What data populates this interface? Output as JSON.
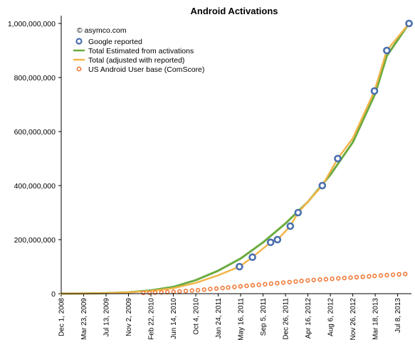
{
  "chart_data": {
    "type": "line",
    "title": "Android Activations",
    "copyright": "© asymco.com",
    "y_ticks": [
      "0",
      "200,000,000",
      "400,000,000",
      "600,000,000",
      "800,000,000",
      "1,000,000,000"
    ],
    "ylim": [
      0,
      1000000000
    ],
    "grid": false,
    "legend_position": "top-left",
    "x_ticks": [
      {
        "label": "Dec 1, 2008",
        "date": "2008-12-01"
      },
      {
        "label": "Mar 23, 2009",
        "date": "2009-03-23"
      },
      {
        "label": "Jul 13, 2009",
        "date": "2009-07-13"
      },
      {
        "label": "Nov 2, 2009",
        "date": "2009-11-02"
      },
      {
        "label": "Feb 22, 2010",
        "date": "2010-02-22"
      },
      {
        "label": "Jun 14, 2010",
        "date": "2010-06-14"
      },
      {
        "label": "Oct 4, 2010",
        "date": "2010-10-04"
      },
      {
        "label": "Jan 24, 2011",
        "date": "2011-01-24"
      },
      {
        "label": "May 16, 2011",
        "date": "2011-05-16"
      },
      {
        "label": "Sep 5, 2011",
        "date": "2011-09-05"
      },
      {
        "label": "Dec 26, 2011",
        "date": "2011-12-26"
      },
      {
        "label": "Apr 16, 2012",
        "date": "2012-04-16"
      },
      {
        "label": "Aug 6, 2012",
        "date": "2012-08-06"
      },
      {
        "label": "Nov 26, 2012",
        "date": "2012-11-26"
      },
      {
        "label": "Mar 18, 2013",
        "date": "2013-03-18"
      },
      {
        "label": "Jul 8, 2013",
        "date": "2013-07-08"
      }
    ],
    "xlim": [
      "2008-12-01",
      "2013-09-15"
    ],
    "series": [
      {
        "name": "Google reported",
        "style": "markers",
        "marker": "circle",
        "color": "#4a6fae",
        "points": [
          [
            "2011-05-10",
            100000000
          ],
          [
            "2011-07-14",
            135000000
          ],
          [
            "2011-10-13",
            190000000
          ],
          [
            "2011-11-16",
            200000000
          ],
          [
            "2012-01-19",
            250000000
          ],
          [
            "2012-02-27",
            300000000
          ],
          [
            "2012-06-27",
            400000000
          ],
          [
            "2012-09-12",
            500000000
          ],
          [
            "2013-03-14",
            750000000
          ],
          [
            "2013-05-15",
            900000000
          ],
          [
            "2013-09-03",
            1000000000
          ]
        ]
      },
      {
        "name": "Total Estimated from activations",
        "style": "line",
        "color": "#6aab3f",
        "points": [
          [
            "2008-12-01",
            0
          ],
          [
            "2009-03-23",
            500000
          ],
          [
            "2009-07-13",
            2000000
          ],
          [
            "2009-11-02",
            5000000
          ],
          [
            "2010-02-22",
            12000000
          ],
          [
            "2010-06-14",
            25000000
          ],
          [
            "2010-10-04",
            50000000
          ],
          [
            "2011-01-24",
            85000000
          ],
          [
            "2011-05-16",
            130000000
          ],
          [
            "2011-09-05",
            190000000
          ],
          [
            "2011-12-26",
            260000000
          ],
          [
            "2012-04-16",
            340000000
          ],
          [
            "2012-08-06",
            440000000
          ],
          [
            "2012-11-26",
            560000000
          ],
          [
            "2013-03-18",
            740000000
          ],
          [
            "2013-05-15",
            880000000
          ],
          [
            "2013-09-03",
            1000000000
          ]
        ]
      },
      {
        "name": "Total (adjusted with reported)",
        "style": "line",
        "color": "#f2b54a",
        "points": [
          [
            "2008-12-01",
            0
          ],
          [
            "2009-03-23",
            500000
          ],
          [
            "2009-07-13",
            2000000
          ],
          [
            "2009-11-02",
            5000000
          ],
          [
            "2010-02-22",
            10000000
          ],
          [
            "2010-06-14",
            20000000
          ],
          [
            "2010-10-04",
            40000000
          ],
          [
            "2011-01-24",
            68000000
          ],
          [
            "2011-05-10",
            100000000
          ],
          [
            "2011-07-14",
            135000000
          ],
          [
            "2011-10-13",
            190000000
          ],
          [
            "2011-11-16",
            200000000
          ],
          [
            "2012-01-19",
            250000000
          ],
          [
            "2012-02-27",
            300000000
          ],
          [
            "2012-06-27",
            400000000
          ],
          [
            "2012-09-12",
            500000000
          ],
          [
            "2012-11-26",
            575000000
          ],
          [
            "2013-03-14",
            750000000
          ],
          [
            "2013-05-15",
            900000000
          ],
          [
            "2013-09-03",
            1000000000
          ]
        ]
      },
      {
        "name": "US Android User base (ComScore)",
        "style": "markers",
        "marker": "circle",
        "color": "#f07b3a",
        "points": [
          [
            "2010-01-15",
            3000000
          ],
          [
            "2010-02-15",
            3500000
          ],
          [
            "2010-03-15",
            4000000
          ],
          [
            "2010-04-15",
            5000000
          ],
          [
            "2010-05-15",
            6000000
          ],
          [
            "2010-06-15",
            7000000
          ],
          [
            "2010-07-15",
            8500000
          ],
          [
            "2010-08-15",
            10000000
          ],
          [
            "2010-09-15",
            11500000
          ],
          [
            "2010-10-15",
            13000000
          ],
          [
            "2010-11-15",
            15000000
          ],
          [
            "2010-12-15",
            17000000
          ],
          [
            "2011-01-15",
            19000000
          ],
          [
            "2011-02-15",
            21000000
          ],
          [
            "2011-03-15",
            23000000
          ],
          [
            "2011-04-15",
            25000000
          ],
          [
            "2011-05-15",
            27000000
          ],
          [
            "2011-06-15",
            29000000
          ],
          [
            "2011-07-15",
            31000000
          ],
          [
            "2011-08-15",
            33000000
          ],
          [
            "2011-09-15",
            35000000
          ],
          [
            "2011-10-15",
            37000000
          ],
          [
            "2011-11-15",
            39000000
          ],
          [
            "2011-12-15",
            41000000
          ],
          [
            "2012-01-15",
            43000000
          ],
          [
            "2012-02-15",
            45000000
          ],
          [
            "2012-03-15",
            47000000
          ],
          [
            "2012-04-15",
            49000000
          ],
          [
            "2012-05-15",
            50500000
          ],
          [
            "2012-06-15",
            52000000
          ],
          [
            "2012-07-15",
            53500000
          ],
          [
            "2012-08-15",
            55000000
          ],
          [
            "2012-09-15",
            56500000
          ],
          [
            "2012-10-15",
            58000000
          ],
          [
            "2012-11-15",
            59500000
          ],
          [
            "2012-12-15",
            61000000
          ],
          [
            "2013-01-15",
            62500000
          ],
          [
            "2013-02-15",
            64000000
          ],
          [
            "2013-03-15",
            65500000
          ],
          [
            "2013-04-15",
            67000000
          ],
          [
            "2013-05-15",
            68500000
          ],
          [
            "2013-06-15",
            70000000
          ],
          [
            "2013-07-15",
            71500000
          ],
          [
            "2013-08-15",
            73000000
          ]
        ]
      }
    ]
  }
}
